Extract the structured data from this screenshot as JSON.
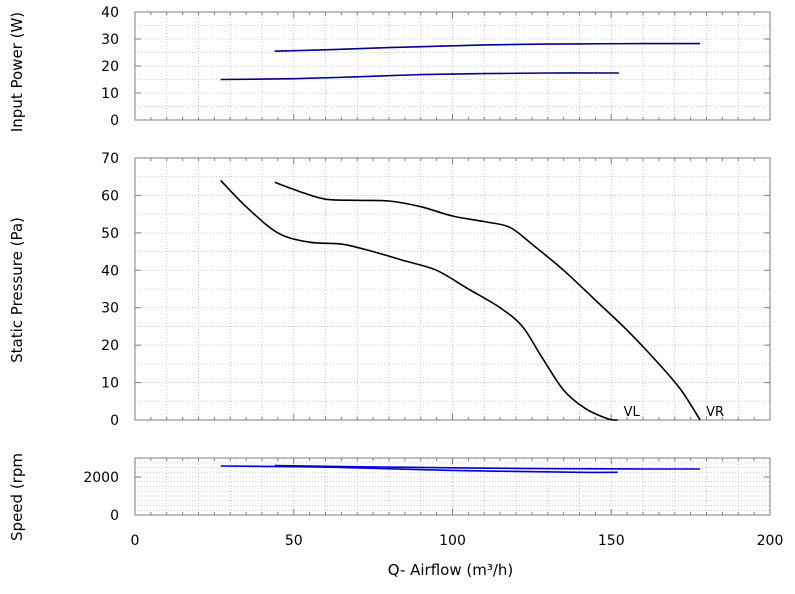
{
  "chart_data": [
    {
      "type": "line",
      "panel": "power",
      "title": "",
      "ylabel": "Input Power (W)",
      "ylim": [
        0,
        40
      ],
      "yticks": [
        0,
        10,
        20,
        30,
        40
      ],
      "xlim": [
        0,
        200
      ],
      "grid": true,
      "series": [
        {
          "color": "#00008b",
          "x": [
            44,
            60,
            80,
            100,
            120,
            140,
            160,
            178
          ],
          "y": [
            25.5,
            26.0,
            26.8,
            27.5,
            28.0,
            28.2,
            28.3,
            28.3
          ]
        },
        {
          "color": "#00008b",
          "x": [
            27,
            50,
            70,
            90,
            110,
            130,
            150,
            152
          ],
          "y": [
            15.0,
            15.3,
            16.0,
            16.8,
            17.2,
            17.4,
            17.4,
            17.4
          ]
        }
      ]
    },
    {
      "type": "line",
      "panel": "pressure",
      "title": "",
      "ylabel": "Static Pressure (Pa)",
      "ylim": [
        0,
        70
      ],
      "yticks": [
        0,
        10,
        20,
        30,
        40,
        50,
        60,
        70
      ],
      "xlim": [
        0,
        200
      ],
      "grid": true,
      "series": [
        {
          "name": "VL",
          "color": "#000000",
          "x": [
            27,
            35,
            45,
            55,
            65,
            75,
            85,
            95,
            105,
            115,
            122,
            128,
            135,
            142,
            149,
            152
          ],
          "y": [
            64,
            57,
            50,
            47.5,
            47,
            45,
            42.5,
            40,
            35,
            30,
            25,
            17,
            8,
            3,
            0.3,
            0
          ]
        },
        {
          "name": "VR",
          "color": "#000000",
          "x": [
            44,
            52,
            60,
            70,
            80,
            90,
            100,
            110,
            118,
            125,
            135,
            145,
            155,
            165,
            172,
            178
          ],
          "y": [
            63.5,
            61,
            59,
            58.7,
            58.5,
            57,
            54.5,
            53,
            51.5,
            47,
            40,
            32,
            24,
            15,
            8,
            0
          ]
        }
      ]
    },
    {
      "type": "line",
      "panel": "speed",
      "title": "",
      "ylabel": "Speed (rpm",
      "ylim": [
        0,
        3000
      ],
      "yticks": [
        0,
        2000
      ],
      "xlim": [
        0,
        200
      ],
      "xticks": [
        0,
        50,
        100,
        150,
        200
      ],
      "xlabel": "Q- Airflow (m³/h)",
      "grid": true,
      "series": [
        {
          "color": "#0000cd",
          "x": [
            27,
            60,
            100,
            140,
            152
          ],
          "y": [
            2580,
            2520,
            2350,
            2250,
            2250
          ]
        },
        {
          "color": "#0000cd",
          "x": [
            44,
            80,
            120,
            160,
            178
          ],
          "y": [
            2600,
            2520,
            2450,
            2420,
            2420
          ]
        }
      ]
    }
  ]
}
